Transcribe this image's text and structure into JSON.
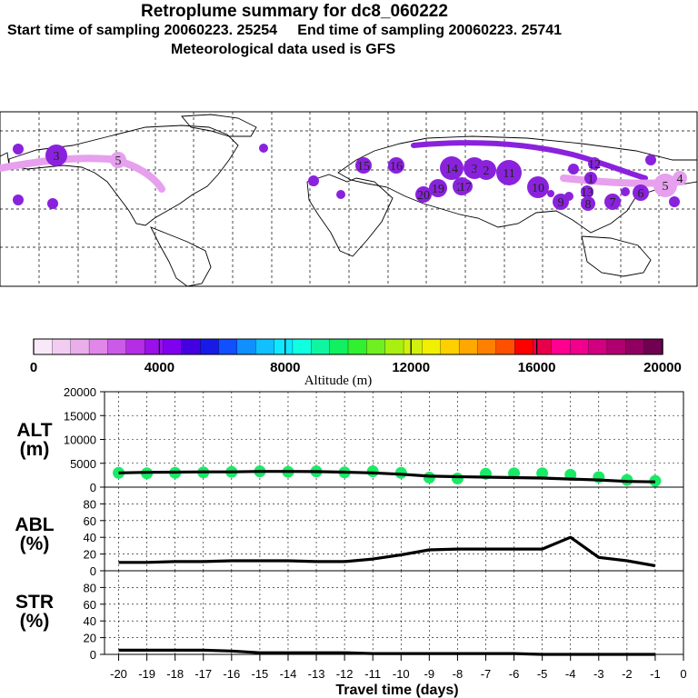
{
  "header": {
    "title": "Retroplume summary for dc8_060222",
    "subtitle": "Start time of sampling 20060223. 25254     End time of sampling 20060223. 25741",
    "met": "Meteorological data used is GFS"
  },
  "colors": {
    "plume_main": "#8a22dd",
    "plume_light": "#e6a0ee",
    "marker_green": "#19ea66",
    "line": "#000000",
    "grid": "#000000"
  },
  "colorbar": {
    "label": "Altitude (m)",
    "tick_labels": [
      "0",
      "4000",
      "8000",
      "12000",
      "16000",
      "20000"
    ],
    "colors": [
      "#f8e8f8",
      "#f2cdf2",
      "#eaaeea",
      "#e087e8",
      "#cc5ae8",
      "#b52ee6",
      "#9a10e8",
      "#8000f0",
      "#4400e0",
      "#1a1ae8",
      "#1050ff",
      "#1090ff",
      "#10c0ff",
      "#10e8ff",
      "#10ffe0",
      "#10f5a0",
      "#10f060",
      "#30f030",
      "#70f020",
      "#a8f010",
      "#d0f010",
      "#f0f000",
      "#ffd000",
      "#ffa800",
      "#ff8000",
      "#ff5000",
      "#ff0000",
      "#e8004a",
      "#ff0090",
      "#f0008c",
      "#d00080",
      "#b00070",
      "#900060",
      "#700050"
    ]
  },
  "plume_labels": [
    "3",
    "5",
    "14",
    "3",
    "2",
    "11",
    "10",
    "9",
    "8",
    "7",
    "6",
    "5",
    "4",
    "1",
    "20",
    "19",
    "18",
    "17",
    "16",
    "15",
    "13",
    "12"
  ],
  "chart_data": [
    {
      "type": "line",
      "name": "ALT",
      "ylabel": "ALT\n(m)",
      "ylabel_top": "ALT",
      "ylabel_bottom": "(m)",
      "xlim": [
        -20.5,
        0
      ],
      "ylim": [
        0,
        20000
      ],
      "yticks": [
        0,
        5000,
        10000,
        15000,
        20000
      ],
      "ytick_labels": [
        "0",
        "5000",
        "10000",
        "15000",
        "20000"
      ],
      "x": [
        -20,
        -19,
        -18,
        -17,
        -16,
        -15,
        -14,
        -13,
        -12,
        -11,
        -10,
        -9,
        -8,
        -7,
        -6,
        -5,
        -4,
        -3,
        -2,
        -1
      ],
      "values": [
        3000,
        3100,
        3150,
        3200,
        3200,
        3300,
        3300,
        3250,
        3150,
        3000,
        2700,
        2300,
        2200,
        2100,
        2000,
        1900,
        1700,
        1500,
        1200,
        1100
      ],
      "markers": {
        "x": [
          -20,
          -19,
          -18,
          -17,
          -16,
          -15,
          -14,
          -13,
          -12,
          -11,
          -10,
          -9,
          -8,
          -7,
          -6,
          -5,
          -4,
          -3,
          -2,
          -1
        ],
        "values": [
          3000,
          2900,
          3000,
          3100,
          3200,
          3300,
          3200,
          3300,
          3100,
          3300,
          3000,
          2000,
          1800,
          2800,
          2900,
          2900,
          2600,
          2100,
          1500,
          1300
        ]
      }
    },
    {
      "type": "line",
      "name": "ABL",
      "ylabel_top": "ABL",
      "ylabel_bottom": "(%)",
      "xlim": [
        -20.5,
        0
      ],
      "ylim": [
        0,
        100
      ],
      "yticks": [
        0,
        20,
        40,
        60,
        80
      ],
      "ytick_labels": [
        "0",
        "20",
        "40",
        "60",
        "80"
      ],
      "x": [
        -20,
        -19,
        -18,
        -17,
        -16,
        -15,
        -14,
        -13,
        -12,
        -11,
        -10,
        -9,
        -8,
        -7,
        -6,
        -5,
        -4,
        -3,
        -2,
        -1
      ],
      "values": [
        10,
        10,
        11,
        11,
        12,
        12,
        12,
        11,
        11,
        14,
        19,
        25,
        26,
        26,
        26,
        26,
        40,
        16,
        12,
        6
      ]
    },
    {
      "type": "line",
      "name": "STR",
      "ylabel_top": "STR",
      "ylabel_bottom": "(%)",
      "xlim": [
        -20.5,
        0
      ],
      "ylim": [
        0,
        100
      ],
      "yticks": [
        0,
        20,
        40,
        60,
        80
      ],
      "ytick_labels": [
        "0",
        "20",
        "40",
        "60",
        "80"
      ],
      "x": [
        -20,
        -19,
        -18,
        -17,
        -16,
        -15,
        -14,
        -13,
        -12,
        -11,
        -10,
        -9,
        -8,
        -7,
        -6,
        -5,
        -4,
        -3,
        -2,
        -1
      ],
      "values": [
        5,
        5,
        5,
        5,
        4,
        2,
        2,
        2,
        2,
        1,
        1,
        1,
        1,
        1,
        1,
        0,
        0,
        0,
        0,
        0
      ]
    }
  ],
  "xaxis": {
    "label": "Travel time (days)",
    "tick_labels": [
      "-20",
      "-19",
      "-18",
      "-17",
      "-16",
      "-15",
      "-14",
      "-13",
      "-12",
      "-11",
      "-10",
      "-9",
      "-8",
      "-7",
      "-6",
      "-5",
      "-4",
      "-3",
      "-2",
      "-1",
      "0"
    ]
  }
}
